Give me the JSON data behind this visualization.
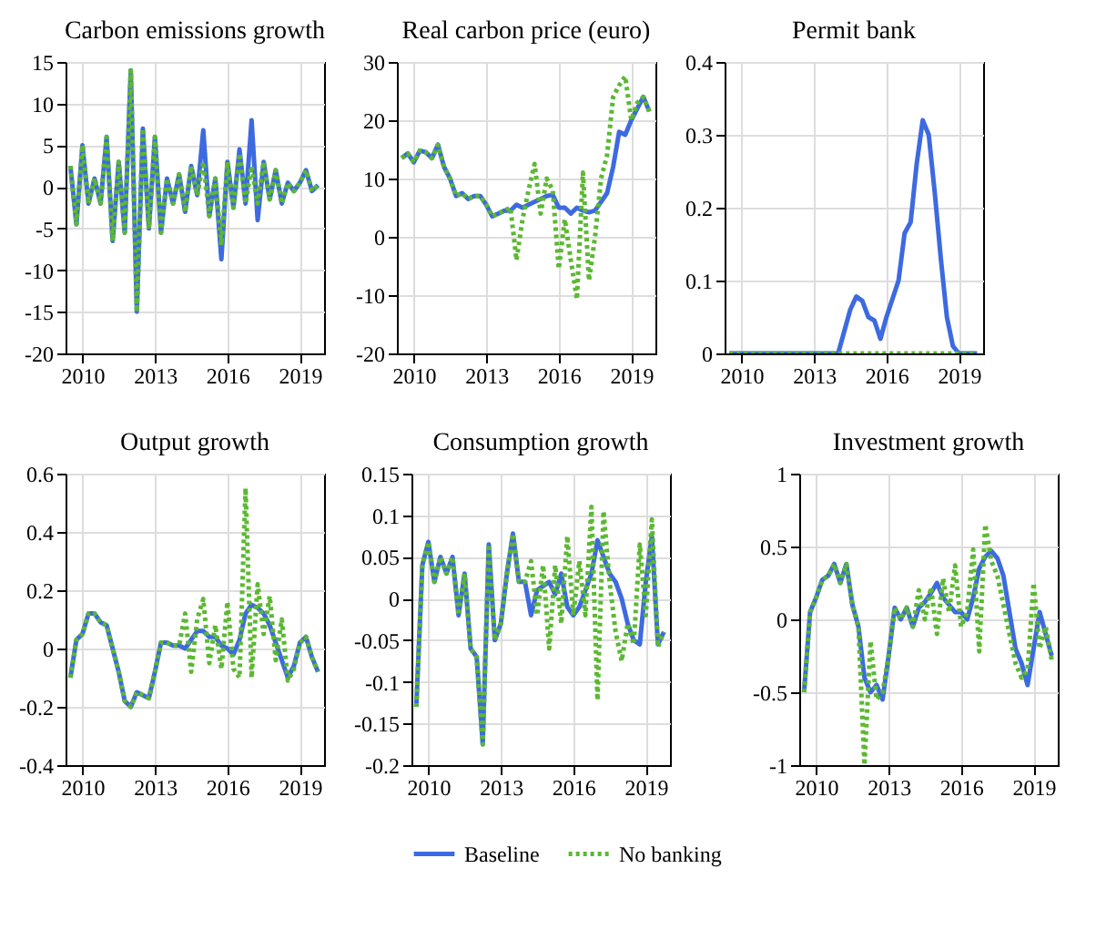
{
  "chart_data": [
    {
      "type": "line",
      "title": "Carbon emissions growth",
      "x": [
        2009.5,
        2009.75,
        2010,
        2010.25,
        2010.5,
        2010.75,
        2011,
        2011.25,
        2011.5,
        2011.75,
        2012,
        2012.25,
        2012.5,
        2012.75,
        2013,
        2013.25,
        2013.5,
        2013.75,
        2014,
        2014.25,
        2014.5,
        2014.75,
        2015,
        2015.25,
        2015.5,
        2015.75,
        2016,
        2016.25,
        2016.5,
        2016.75,
        2017,
        2017.25,
        2017.5,
        2017.75,
        2018,
        2018.25,
        2018.5,
        2018.75,
        2019,
        2019.25,
        2019.5,
        2019.75
      ],
      "xlim": [
        2009.3,
        2020
      ],
      "xticks": [
        2010,
        2013,
        2016,
        2019
      ],
      "ylim": [
        -20,
        15
      ],
      "yticks": [
        -20,
        -15,
        -10,
        -5,
        0,
        5,
        10,
        15
      ],
      "grid": true,
      "series": [
        {
          "color": "#3d6ae0",
          "line_style": "solid",
          "values": [
            2.5,
            -4.5,
            5,
            -2,
            1,
            -2,
            6,
            -6.5,
            3,
            -5.5,
            14,
            -15,
            7,
            -5,
            6,
            -5.5,
            1,
            -2,
            1.5,
            -3,
            2.5,
            -1,
            6.8,
            -3.5,
            1,
            -8.7,
            3,
            -2.5,
            4.5,
            -2,
            8,
            -4,
            3,
            -1.5,
            2,
            -2,
            0.5,
            -0.5,
            0.5,
            2,
            -0.5,
            0.2
          ]
        },
        {
          "color": "#5cb832",
          "line_style": "dotted",
          "values": [
            2.5,
            -4.5,
            5,
            -2,
            1,
            -2,
            6,
            -6.5,
            3,
            -5.5,
            14,
            -15,
            7,
            -5,
            6,
            -5.5,
            1,
            -2,
            1.5,
            -3,
            2.5,
            -1,
            3,
            -3.5,
            1,
            -7,
            3,
            -2.5,
            4,
            -2,
            2.5,
            -2,
            3,
            -1.5,
            2,
            -2,
            0.5,
            -0.5,
            0.5,
            2,
            -0.5,
            0.2
          ]
        }
      ]
    },
    {
      "type": "line",
      "title": "Real carbon price (euro)",
      "x": [
        2009.5,
        2009.75,
        2010,
        2010.25,
        2010.5,
        2010.75,
        2011,
        2011.25,
        2011.5,
        2011.75,
        2012,
        2012.25,
        2012.5,
        2012.75,
        2013,
        2013.25,
        2013.5,
        2013.75,
        2014,
        2014.25,
        2014.5,
        2014.75,
        2015,
        2015.25,
        2015.5,
        2015.75,
        2016,
        2016.25,
        2016.5,
        2016.75,
        2017,
        2017.25,
        2017.5,
        2017.75,
        2018,
        2018.25,
        2018.5,
        2018.75,
        2019,
        2019.25,
        2019.5,
        2019.75
      ],
      "xlim": [
        2009.3,
        2020
      ],
      "xticks": [
        2010,
        2013,
        2016,
        2019
      ],
      "ylim": [
        -20,
        30
      ],
      "yticks": [
        -20,
        -10,
        0,
        10,
        20,
        30
      ],
      "grid": true,
      "series": [
        {
          "color": "#3d6ae0",
          "line_style": "solid",
          "values": [
            13.5,
            14.3,
            12.8,
            14.8,
            14.5,
            13.5,
            15.8,
            12,
            10,
            7,
            7.5,
            6.5,
            7,
            7,
            5.5,
            3.5,
            4,
            4.5,
            4.5,
            5.5,
            5,
            5.5,
            6,
            6.5,
            7,
            7.2,
            5,
            5,
            4,
            5,
            4.5,
            4.2,
            4.5,
            6,
            7.5,
            12,
            18,
            17.5,
            20,
            22,
            24,
            21.5
          ]
        },
        {
          "color": "#5cb832",
          "line_style": "dotted",
          "values": [
            13.5,
            14.3,
            12.8,
            14.8,
            14.5,
            13.5,
            15.8,
            12,
            10,
            7,
            7.5,
            6.5,
            7,
            7,
            5.5,
            3.5,
            4,
            4.5,
            5,
            -4,
            3,
            8,
            12.5,
            4,
            10,
            8,
            -5.5,
            3,
            -4,
            -10.7,
            11,
            -7.5,
            0,
            10,
            14,
            24,
            26,
            27.5,
            20,
            23,
            24,
            21.5
          ]
        }
      ]
    },
    {
      "type": "line",
      "title": "Permit bank",
      "x": [
        2009.5,
        2009.75,
        2010,
        2010.25,
        2010.5,
        2010.75,
        2011,
        2011.25,
        2011.5,
        2011.75,
        2012,
        2012.25,
        2012.5,
        2012.75,
        2013,
        2013.25,
        2013.5,
        2013.75,
        2014,
        2014.25,
        2014.5,
        2014.75,
        2015,
        2015.25,
        2015.5,
        2015.75,
        2016,
        2016.25,
        2016.5,
        2016.75,
        2017,
        2017.25,
        2017.5,
        2017.75,
        2018,
        2018.25,
        2018.5,
        2018.75,
        2019,
        2019.25,
        2019.5,
        2019.75
      ],
      "xlim": [
        2009.3,
        2020
      ],
      "xticks": [
        2010,
        2013,
        2016,
        2019
      ],
      "ylim": [
        0,
        0.4
      ],
      "yticks": [
        0,
        0.1,
        0.2,
        0.3,
        0.4
      ],
      "grid": true,
      "series": [
        {
          "color": "#3d6ae0",
          "line_style": "solid",
          "values": [
            0,
            0,
            0,
            0,
            0,
            0,
            0,
            0,
            0,
            0,
            0,
            0,
            0,
            0,
            0,
            0,
            0,
            0,
            0,
            0.03,
            0.06,
            0.078,
            0.072,
            0.05,
            0.045,
            0.02,
            0.05,
            0.075,
            0.1,
            0.165,
            0.18,
            0.26,
            0.32,
            0.3,
            0.22,
            0.13,
            0.05,
            0.01,
            0,
            0,
            0,
            0
          ]
        },
        {
          "color": "#5cb832",
          "line_style": "dotted",
          "values": [
            0,
            0,
            0,
            0,
            0,
            0,
            0,
            0,
            0,
            0,
            0,
            0,
            0,
            0,
            0,
            0,
            0,
            0,
            0,
            0,
            0,
            0,
            0,
            0,
            0,
            0,
            0,
            0,
            0,
            0,
            0,
            0,
            0,
            0,
            0,
            0,
            0,
            0,
            0,
            0,
            0,
            0
          ]
        }
      ]
    },
    {
      "type": "line",
      "title": "Output growth",
      "x": [
        2009.5,
        2009.75,
        2010,
        2010.25,
        2010.5,
        2010.75,
        2011,
        2011.25,
        2011.5,
        2011.75,
        2012,
        2012.25,
        2012.5,
        2012.75,
        2013,
        2013.25,
        2013.5,
        2013.75,
        2014,
        2014.25,
        2014.5,
        2014.75,
        2015,
        2015.25,
        2015.5,
        2015.75,
        2016,
        2016.25,
        2016.5,
        2016.75,
        2017,
        2017.25,
        2017.5,
        2017.75,
        2018,
        2018.25,
        2018.5,
        2018.75,
        2019,
        2019.25,
        2019.5,
        2019.75
      ],
      "xlim": [
        2009.3,
        2020
      ],
      "xticks": [
        2010,
        2013,
        2016,
        2019
      ],
      "ylim": [
        -0.4,
        0.6
      ],
      "yticks": [
        -0.4,
        -0.2,
        0,
        0.2,
        0.4,
        0.6
      ],
      "grid": true,
      "series": [
        {
          "color": "#3d6ae0",
          "line_style": "solid",
          "values": [
            -0.1,
            0.03,
            0.05,
            0.12,
            0.12,
            0.09,
            0.08,
            0,
            -0.08,
            -0.18,
            -0.2,
            -0.15,
            -0.16,
            -0.17,
            -0.08,
            0.02,
            0.02,
            0.01,
            0.01,
            0,
            0.03,
            0.06,
            0.06,
            0.04,
            0.04,
            0.01,
            0,
            -0.02,
            0.03,
            0.12,
            0.15,
            0.14,
            0.12,
            0.08,
            0.02,
            -0.04,
            -0.1,
            -0.06,
            0.02,
            0.04,
            -0.03,
            -0.08
          ]
        },
        {
          "color": "#5cb832",
          "line_style": "dotted",
          "values": [
            -0.1,
            0.03,
            0.05,
            0.12,
            0.12,
            0.09,
            0.08,
            0,
            -0.08,
            -0.18,
            -0.2,
            -0.15,
            -0.16,
            -0.17,
            -0.08,
            0.02,
            0.02,
            0.01,
            0.01,
            0.12,
            -0.08,
            0.1,
            0.17,
            -0.05,
            0.08,
            -0.07,
            0.16,
            -0.07,
            -0.1,
            0.55,
            -0.1,
            0.22,
            0.05,
            0.18,
            -0.04,
            0.1,
            -0.11,
            -0.07,
            0.02,
            0.04,
            -0.03,
            -0.08
          ]
        }
      ]
    },
    {
      "type": "line",
      "title": "Consumption growth",
      "x": [
        2009.5,
        2009.75,
        2010,
        2010.25,
        2010.5,
        2010.75,
        2011,
        2011.25,
        2011.5,
        2011.75,
        2012,
        2012.25,
        2012.5,
        2012.75,
        2013,
        2013.25,
        2013.5,
        2013.75,
        2014,
        2014.25,
        2014.5,
        2014.75,
        2015,
        2015.25,
        2015.5,
        2015.75,
        2016,
        2016.25,
        2016.5,
        2016.75,
        2017,
        2017.25,
        2017.5,
        2017.75,
        2018,
        2018.25,
        2018.5,
        2018.75,
        2019,
        2019.25,
        2019.5,
        2019.75
      ],
      "xlim": [
        2009.3,
        2020
      ],
      "xticks": [
        2010,
        2013,
        2016,
        2019
      ],
      "ylim": [
        -0.2,
        0.15
      ],
      "yticks": [
        -0.2,
        -0.15,
        -0.1,
        -0.05,
        0,
        0.05,
        0.1,
        0.15
      ],
      "grid": true,
      "legend": "bottom",
      "series": [
        {
          "name": "Baseline",
          "color": "#3d6ae0",
          "line_style": "solid",
          "values": [
            -0.13,
            0.04,
            0.068,
            0.02,
            0.05,
            0.03,
            0.05,
            -0.02,
            0.03,
            -0.06,
            -0.07,
            -0.175,
            0.065,
            -0.05,
            -0.03,
            0.03,
            0.078,
            0.02,
            0.02,
            -0.02,
            0.01,
            0.015,
            0.02,
            0.005,
            0.03,
            -0.01,
            -0.02,
            -0.01,
            0.01,
            0.03,
            0.07,
            0.05,
            0.03,
            0.02,
            0,
            -0.03,
            -0.05,
            -0.055,
            0.02,
            0.075,
            -0.055,
            -0.04
          ]
        },
        {
          "name": "No banking",
          "color": "#5cb832",
          "line_style": "dotted",
          "values": [
            -0.13,
            0.04,
            0.068,
            0.02,
            0.05,
            0.03,
            0.05,
            -0.02,
            0.03,
            -0.06,
            -0.07,
            -0.175,
            0.065,
            -0.05,
            -0.03,
            0.03,
            0.078,
            0.02,
            0.02,
            0.045,
            -0.02,
            0.04,
            -0.06,
            0.04,
            -0.03,
            0.075,
            -0.02,
            0.045,
            -0.02,
            0.11,
            -0.122,
            0.105,
            0.02,
            -0.04,
            -0.075,
            -0.03,
            -0.055,
            0.065,
            -0.02,
            0.095,
            -0.058,
            -0.04
          ]
        }
      ]
    },
    {
      "type": "line",
      "title": "Investment growth",
      "x": [
        2009.5,
        2009.75,
        2010,
        2010.25,
        2010.5,
        2010.75,
        2011,
        2011.25,
        2011.5,
        2011.75,
        2012,
        2012.25,
        2012.5,
        2012.75,
        2013,
        2013.25,
        2013.5,
        2013.75,
        2014,
        2014.25,
        2014.5,
        2014.75,
        2015,
        2015.25,
        2015.5,
        2015.75,
        2016,
        2016.25,
        2016.5,
        2016.75,
        2017,
        2017.25,
        2017.5,
        2017.75,
        2018,
        2018.25,
        2018.5,
        2018.75,
        2019,
        2019.25,
        2019.5,
        2019.75
      ],
      "xlim": [
        2009.3,
        2020
      ],
      "xticks": [
        2010,
        2013,
        2016,
        2019
      ],
      "ylim": [
        -1,
        1
      ],
      "yticks": [
        -1,
        -0.5,
        0,
        0.5,
        1
      ],
      "grid": true,
      "series": [
        {
          "color": "#3d6ae0",
          "line_style": "solid",
          "values": [
            -0.5,
            0.05,
            0.15,
            0.27,
            0.3,
            0.38,
            0.25,
            0.38,
            0.1,
            -0.05,
            -0.4,
            -0.5,
            -0.45,
            -0.55,
            -0.25,
            0.08,
            0,
            0.08,
            -0.05,
            0.08,
            0.12,
            0.18,
            0.25,
            0.15,
            0.1,
            0.05,
            0.05,
            0,
            0.15,
            0.35,
            0.43,
            0.47,
            0.42,
            0.3,
            0.05,
            -0.2,
            -0.3,
            -0.45,
            -0.2,
            0.05,
            -0.1,
            -0.25
          ]
        },
        {
          "color": "#5cb832",
          "line_style": "dotted",
          "values": [
            -0.5,
            0.05,
            0.15,
            0.27,
            0.3,
            0.38,
            0.25,
            0.38,
            0.1,
            -0.05,
            -1,
            -0.15,
            -0.55,
            -0.5,
            -0.25,
            0.08,
            0,
            0.08,
            -0.05,
            0.2,
            0,
            0.22,
            -0.1,
            0.28,
            0.05,
            0.37,
            -0.05,
            0.05,
            0.48,
            -0.22,
            0.65,
            0.4,
            0.3,
            0.1,
            -0.1,
            -0.3,
            -0.4,
            -0.35,
            0.25,
            -0.2,
            -0.05,
            -0.28
          ]
        }
      ]
    }
  ]
}
